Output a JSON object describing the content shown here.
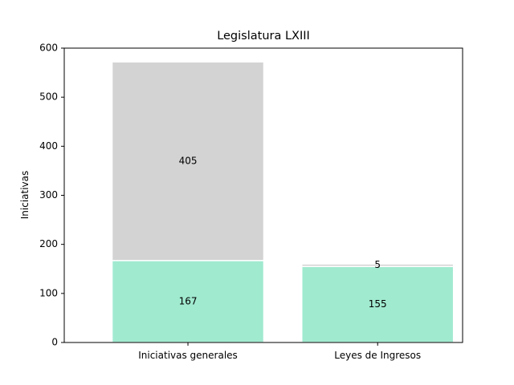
{
  "chart_data": {
    "type": "bar",
    "stacked": true,
    "title": "Legislatura LXIII",
    "xlabel": "",
    "ylabel": "Iniciativas",
    "ylim": [
      0,
      600
    ],
    "yticks": [
      "0",
      "100",
      "200",
      "300",
      "400",
      "500",
      "600"
    ],
    "categories": [
      "Iniciativas generales",
      "Leyes de Ingresos"
    ],
    "series": [
      {
        "values": [
          167,
          155
        ],
        "labels": [
          "167",
          "155"
        ],
        "color": "#a0ead0"
      },
      {
        "values": [
          405,
          5
        ],
        "labels": [
          "405",
          "5"
        ],
        "color": "#d3d3d3"
      }
    ],
    "grid": false,
    "legend": "none"
  }
}
